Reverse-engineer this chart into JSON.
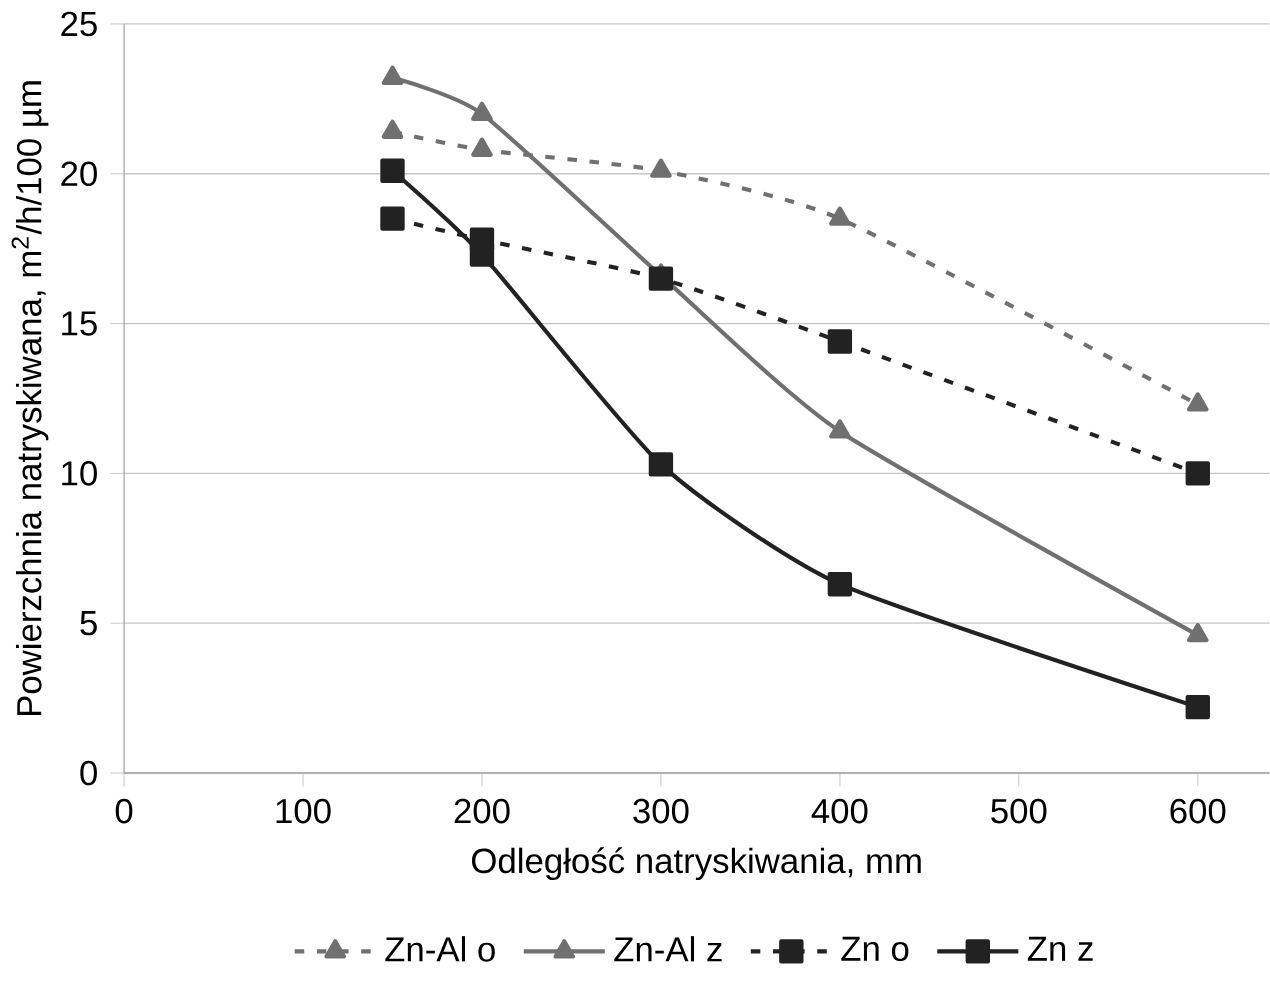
{
  "chart_data": {
    "type": "line",
    "xlabel": "Odległość natryskiwania, mm",
    "ylabel": "Powierzchnia natryskiwana, m$^{2}$/h/100 µm",
    "x": [
      150,
      200,
      300,
      400,
      600
    ],
    "series": [
      {
        "name": "Zn-Al o",
        "color": "#707070",
        "marker": "triangle",
        "line_style": "dashed",
        "values": [
          21.4,
          20.8,
          20.1,
          18.5,
          12.3
        ]
      },
      {
        "name": "Zn-Al z",
        "color": "#707070",
        "marker": "triangle",
        "line_style": "solid",
        "values": [
          23.2,
          22.0,
          16.6,
          11.4,
          4.6
        ]
      },
      {
        "name": "Zn o",
        "color": "#222222",
        "marker": "square",
        "line_style": "dashed",
        "values": [
          18.5,
          17.8,
          16.5,
          14.4,
          10.0
        ]
      },
      {
        "name": "Zn z",
        "color": "#222222",
        "marker": "square",
        "line_style": "solid",
        "values": [
          20.1,
          17.3,
          10.3,
          6.3,
          2.2
        ]
      }
    ],
    "xlim": [
      0,
      640
    ],
    "xticks": [
      0,
      100,
      200,
      300,
      400,
      500,
      600
    ],
    "ylim": [
      0,
      25
    ],
    "yticks": [
      0,
      5,
      10,
      15,
      20,
      25
    ],
    "grid": "y",
    "legend": "bottom"
  }
}
